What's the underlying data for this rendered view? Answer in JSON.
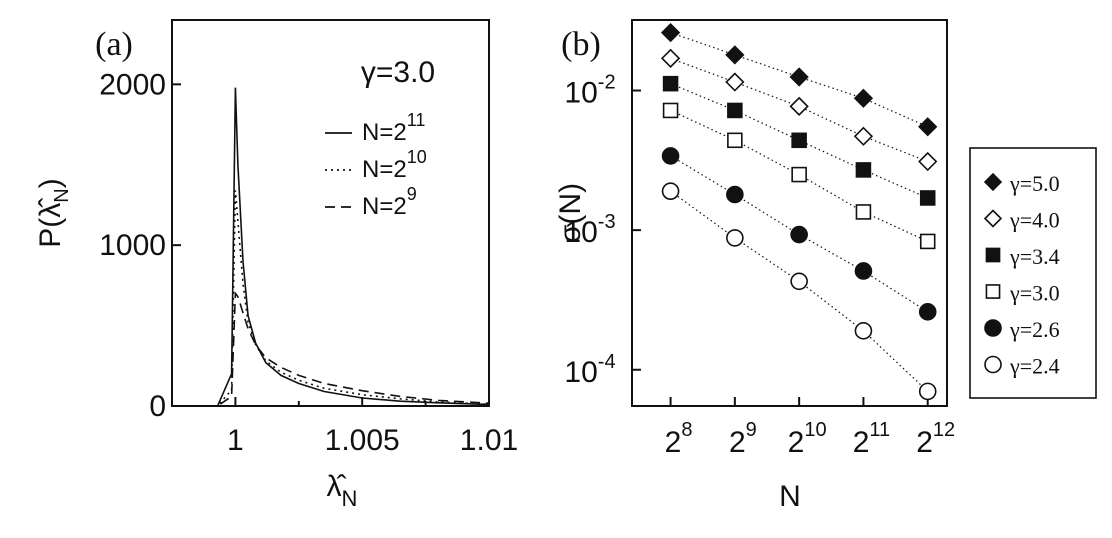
{
  "chart_data": [
    {
      "panel": "(a)",
      "type": "line",
      "annotation": "γ=3.0",
      "xlabel": "λ̂",
      "xlabel_sub": "N",
      "ylabel": "P(λ̂",
      "ylabel_sub": "N",
      "ylabel_close": ")",
      "xlim": [
        0.9975,
        1.01
      ],
      "ylim": [
        0,
        2400
      ],
      "x_ticks": [
        1,
        1.005,
        1.01
      ],
      "x_tick_labels": [
        "1",
        "1.005",
        "1.01"
      ],
      "y_ticks": [
        0,
        1000,
        2000
      ],
      "y_tick_labels": [
        "0",
        "1000",
        "2000"
      ],
      "legend_location": "upper-right",
      "series": [
        {
          "name": "N=2",
          "sup": "11",
          "style": "solid",
          "x": [
            0.997,
            0.9993,
            0.99985,
            1.0,
            1.0001,
            1.0003,
            1.0005,
            1.0008,
            1.0012,
            1.0018,
            1.0025,
            1.0035,
            1.005,
            1.0065,
            1.008,
            1.01
          ],
          "y": [
            0,
            0,
            200,
            1980,
            1500,
            900,
            560,
            390,
            270,
            190,
            140,
            90,
            50,
            30,
            20,
            10
          ]
        },
        {
          "name": "N=2",
          "sup": "10",
          "style": "dotted",
          "x": [
            0.997,
            0.9993,
            0.99985,
            1.0,
            1.0001,
            1.0003,
            1.0005,
            1.0008,
            1.0012,
            1.0018,
            1.0025,
            1.0035,
            1.005,
            1.0065,
            1.008,
            1.01
          ],
          "y": [
            0,
            0,
            100,
            1340,
            1150,
            760,
            520,
            380,
            280,
            210,
            160,
            110,
            70,
            45,
            25,
            12
          ]
        },
        {
          "name": "N=2",
          "sup": "9",
          "style": "dashed",
          "x": [
            0.997,
            0.9993,
            0.99985,
            1.0,
            1.0001,
            1.0003,
            1.0005,
            1.0008,
            1.0012,
            1.0018,
            1.0025,
            1.0035,
            1.005,
            1.0065,
            1.008,
            1.01
          ],
          "y": [
            0,
            0,
            60,
            700,
            680,
            580,
            480,
            380,
            300,
            240,
            190,
            140,
            95,
            60,
            35,
            18
          ]
        }
      ]
    },
    {
      "panel": "(b)",
      "type": "scatter",
      "xscale": "log2",
      "yscale": "log10",
      "xlabel": "N",
      "ylabel": "σ(N)",
      "x": [
        256,
        512,
        1024,
        2048,
        4096
      ],
      "x_ticks": [
        256,
        512,
        1024,
        2048,
        4096
      ],
      "x_tick_base": "2",
      "x_tick_exponents": [
        "8",
        "9",
        "10",
        "11",
        "12"
      ],
      "y_ticks": [
        0.0001,
        0.001,
        0.01
      ],
      "y_tick_base": "10",
      "y_tick_exponents": [
        "-4",
        "-3",
        "-2"
      ],
      "ylim": [
        5.5e-05,
        0.032
      ],
      "legend_location": "outside-right",
      "series": [
        {
          "name": "γ=5.0",
          "marker": "diamond-filled",
          "values": [
            0.026,
            0.018,
            0.0125,
            0.0088,
            0.0055
          ]
        },
        {
          "name": "γ=4.0",
          "marker": "diamond-open",
          "values": [
            0.017,
            0.0115,
            0.0077,
            0.0047,
            0.0031
          ]
        },
        {
          "name": "γ=3.4",
          "marker": "square-filled",
          "values": [
            0.0112,
            0.0072,
            0.0044,
            0.0027,
            0.0017
          ]
        },
        {
          "name": "γ=3.0",
          "marker": "square-open",
          "values": [
            0.0072,
            0.0044,
            0.0025,
            0.00135,
            0.00083
          ]
        },
        {
          "name": "γ=2.6",
          "marker": "circle-filled",
          "values": [
            0.0034,
            0.0018,
            0.00093,
            0.00051,
            0.00026
          ]
        },
        {
          "name": "γ=2.4",
          "marker": "circle-open",
          "values": [
            0.0019,
            0.00088,
            0.00043,
            0.00019,
            7e-05
          ]
        }
      ]
    }
  ]
}
